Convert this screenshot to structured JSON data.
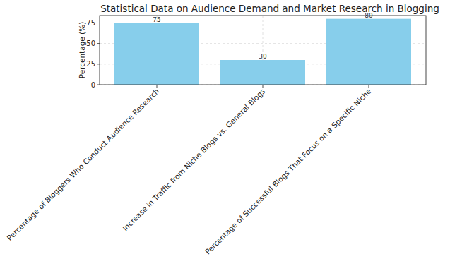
{
  "chart_data": {
    "type": "bar",
    "title": "Statistical Data on Audience Demand and Market Research in Blogging",
    "y_label": "Percentage (%)",
    "categories": [
      "Percentage of Bloggers Who Conduct Audience Research",
      "Increase in Traffic from Niche Blogs vs. General Blogs",
      "Percentage of Successful Blogs That Focus on a Specific Niche"
    ],
    "values": [
      75,
      30,
      80
    ],
    "color": "#87ceeb",
    "ylim": [
      0,
      84
    ],
    "yticks": [
      0,
      25,
      50,
      75
    ],
    "grid": true,
    "data_labels": true
  }
}
